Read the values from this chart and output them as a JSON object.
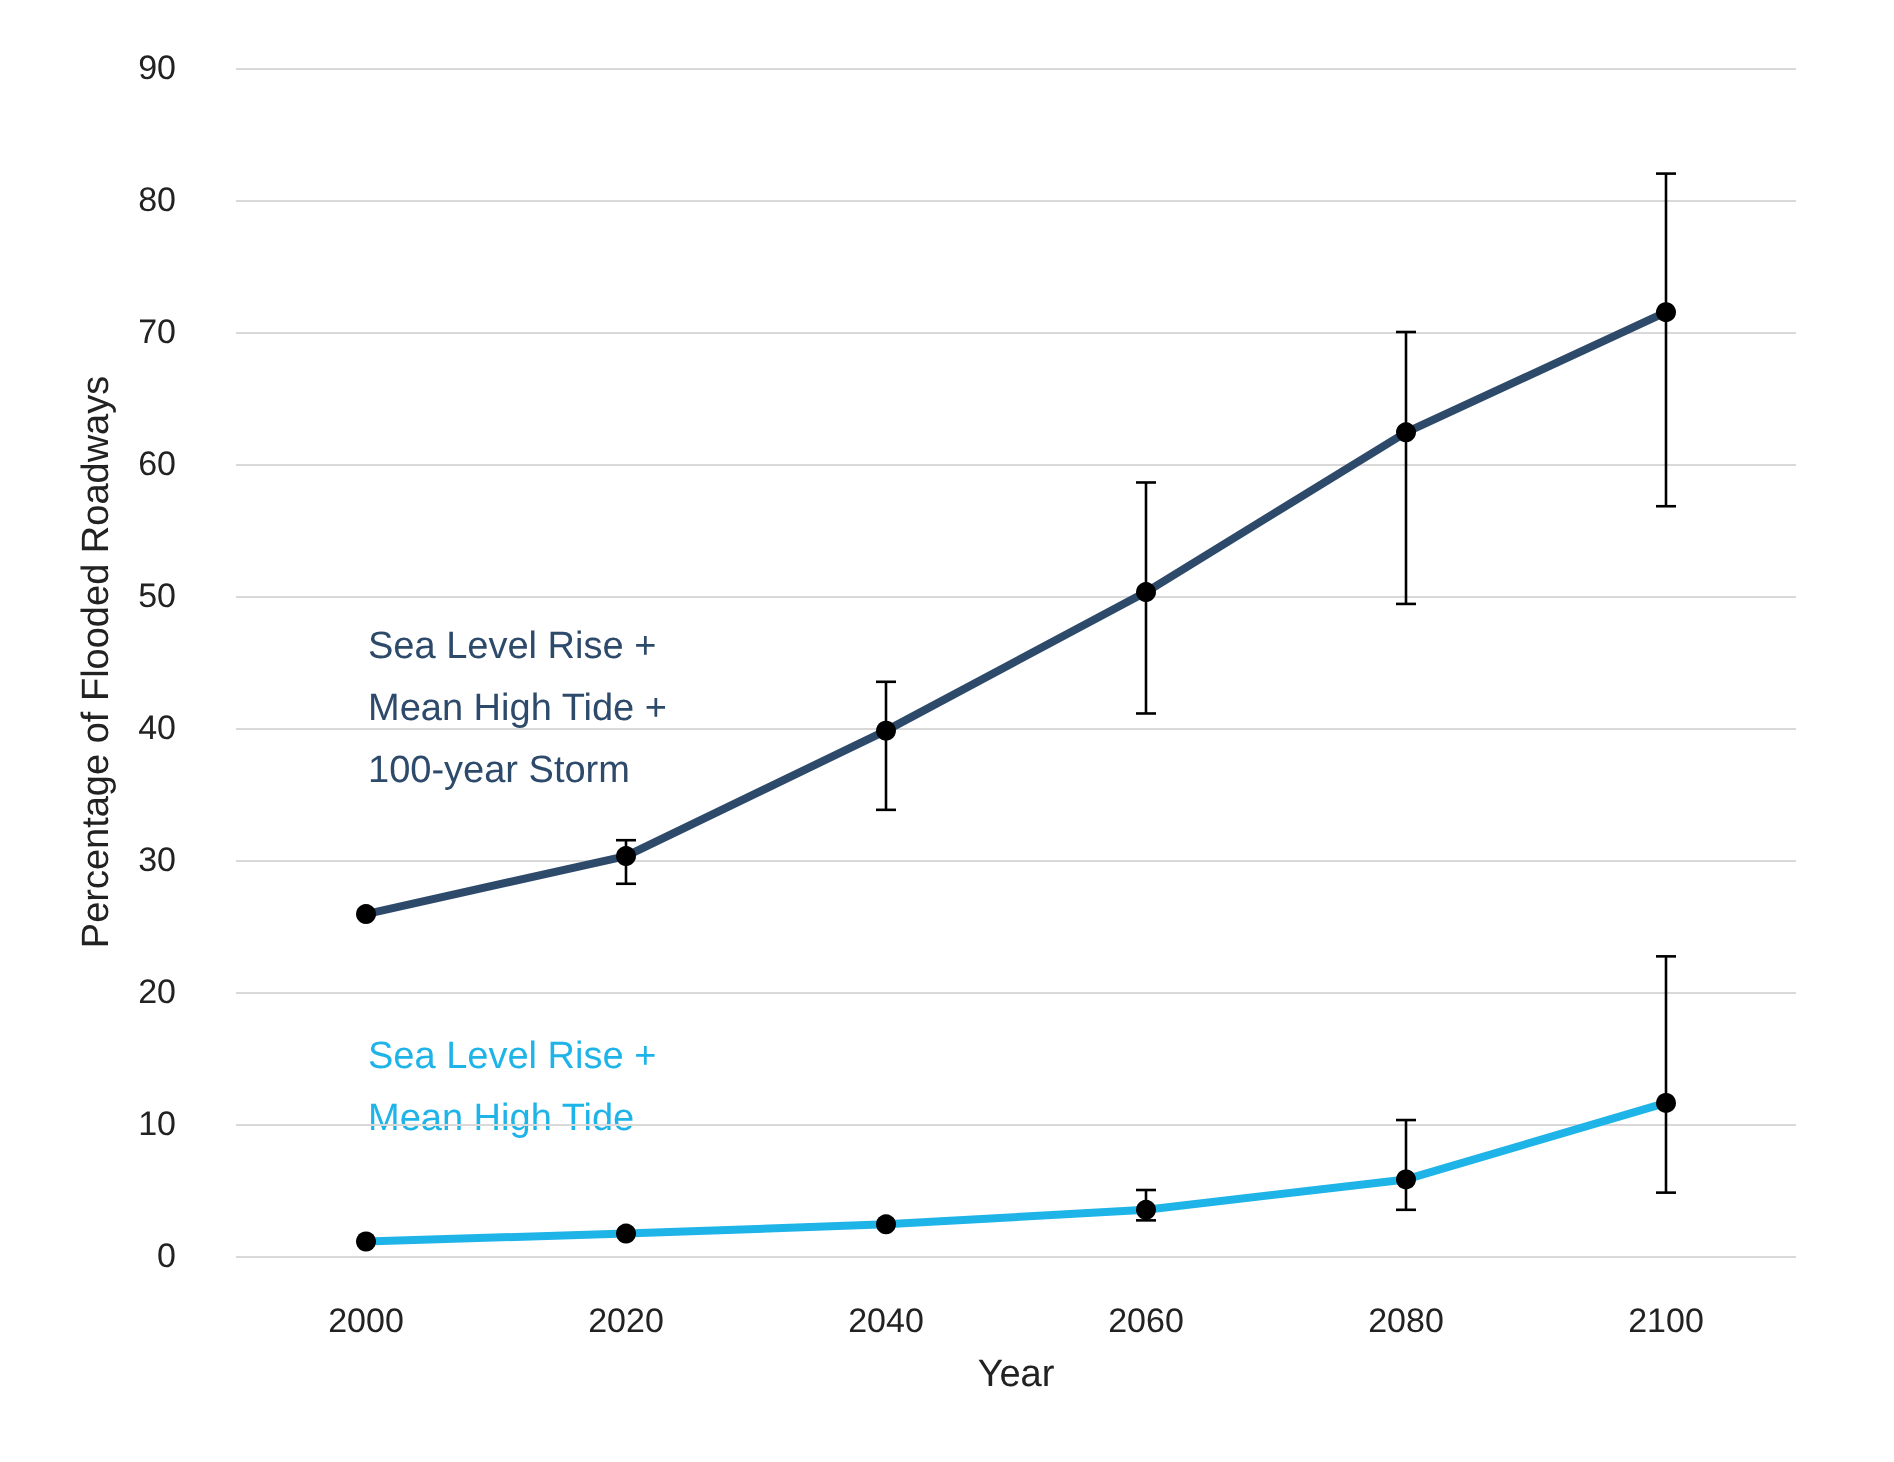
{
  "chart_data": {
    "type": "line",
    "xlabel": "Year",
    "ylabel": "Percentage of Flooded Roadways",
    "categories": [
      "2000",
      "2020",
      "2040",
      "2060",
      "2080",
      "2100"
    ],
    "series": [
      {
        "name": "Sea Level Rise +\nMean High Tide +\n100-year Storm",
        "color": "#2e4a6b",
        "values": [
          25.9,
          30.3,
          39.8,
          50.3,
          62.4,
          71.5
        ],
        "errors": [
          null,
          [
            28.2,
            31.5
          ],
          [
            33.8,
            43.5
          ],
          [
            41.1,
            58.6
          ],
          [
            49.4,
            70
          ],
          [
            56.8,
            82
          ]
        ]
      },
      {
        "name": "Sea Level Rise +\nMean High Tide",
        "color": "#1fb4e8",
        "values": [
          1.1,
          1.7,
          2.4,
          3.5,
          5.8,
          11.6
        ],
        "errors": [
          null,
          null,
          null,
          [
            2.7,
            5
          ],
          [
            3.5,
            10.3
          ],
          [
            4.8,
            22.7
          ]
        ]
      }
    ],
    "ylim": [
      0,
      90
    ],
    "yticks": [
      0,
      10,
      20,
      30,
      40,
      50,
      60,
      70,
      80,
      90
    ],
    "grid": "y",
    "marker": "circle",
    "line_style": "solid",
    "legend": false
  }
}
